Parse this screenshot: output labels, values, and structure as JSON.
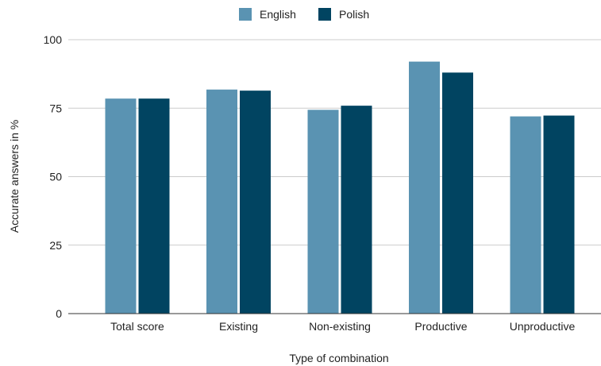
{
  "chart_data": {
    "type": "bar",
    "title": "",
    "xlabel": "Type of combination",
    "ylabel": "Accurate answers in %",
    "categories": [
      "Total score",
      "Existing",
      "Non-existing",
      "Productive",
      "Unproductive"
    ],
    "series": [
      {
        "name": "English",
        "color": "#5a93b2",
        "values": [
          78.5,
          81.8,
          74.4,
          92.0,
          72.0
        ]
      },
      {
        "name": "Polish",
        "color": "#014461",
        "values": [
          78.5,
          81.4,
          75.9,
          88.0,
          72.3
        ]
      }
    ],
    "ylim": [
      0,
      100
    ],
    "yticks": [
      0,
      25,
      50,
      75,
      100
    ],
    "grid": true,
    "legend_position": "top-center"
  }
}
